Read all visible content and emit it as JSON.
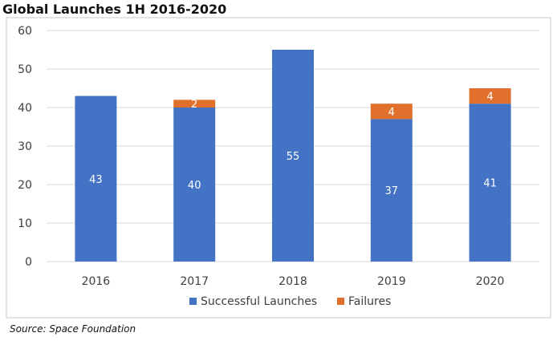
{
  "chart_data": {
    "type": "bar",
    "stacked": true,
    "title": "Global Launches 1H 2016-2020",
    "categories": [
      "2016",
      "2017",
      "2018",
      "2019",
      "2020"
    ],
    "series": [
      {
        "name": "Successful Launches",
        "values": [
          43,
          40,
          55,
          37,
          41
        ],
        "color": "#4472c4"
      },
      {
        "name": "Failures",
        "values": [
          0,
          2,
          0,
          4,
          4
        ],
        "color": "#e0702c"
      }
    ],
    "data_labels": {
      "Successful Launches": [
        "43",
        "40",
        "55",
        "37",
        "41"
      ],
      "Failures": [
        "",
        "2",
        "",
        "4",
        "4"
      ]
    },
    "yticks": [
      "0",
      "10",
      "20",
      "30",
      "40",
      "50",
      "60"
    ],
    "ylim": [
      0,
      60
    ],
    "grid": true,
    "legend_position": "bottom"
  },
  "source": "Source: Space Foundation",
  "colors": {
    "successful": "#4472c4",
    "failures": "#e0702c",
    "grid": "#d9d9d9"
  }
}
